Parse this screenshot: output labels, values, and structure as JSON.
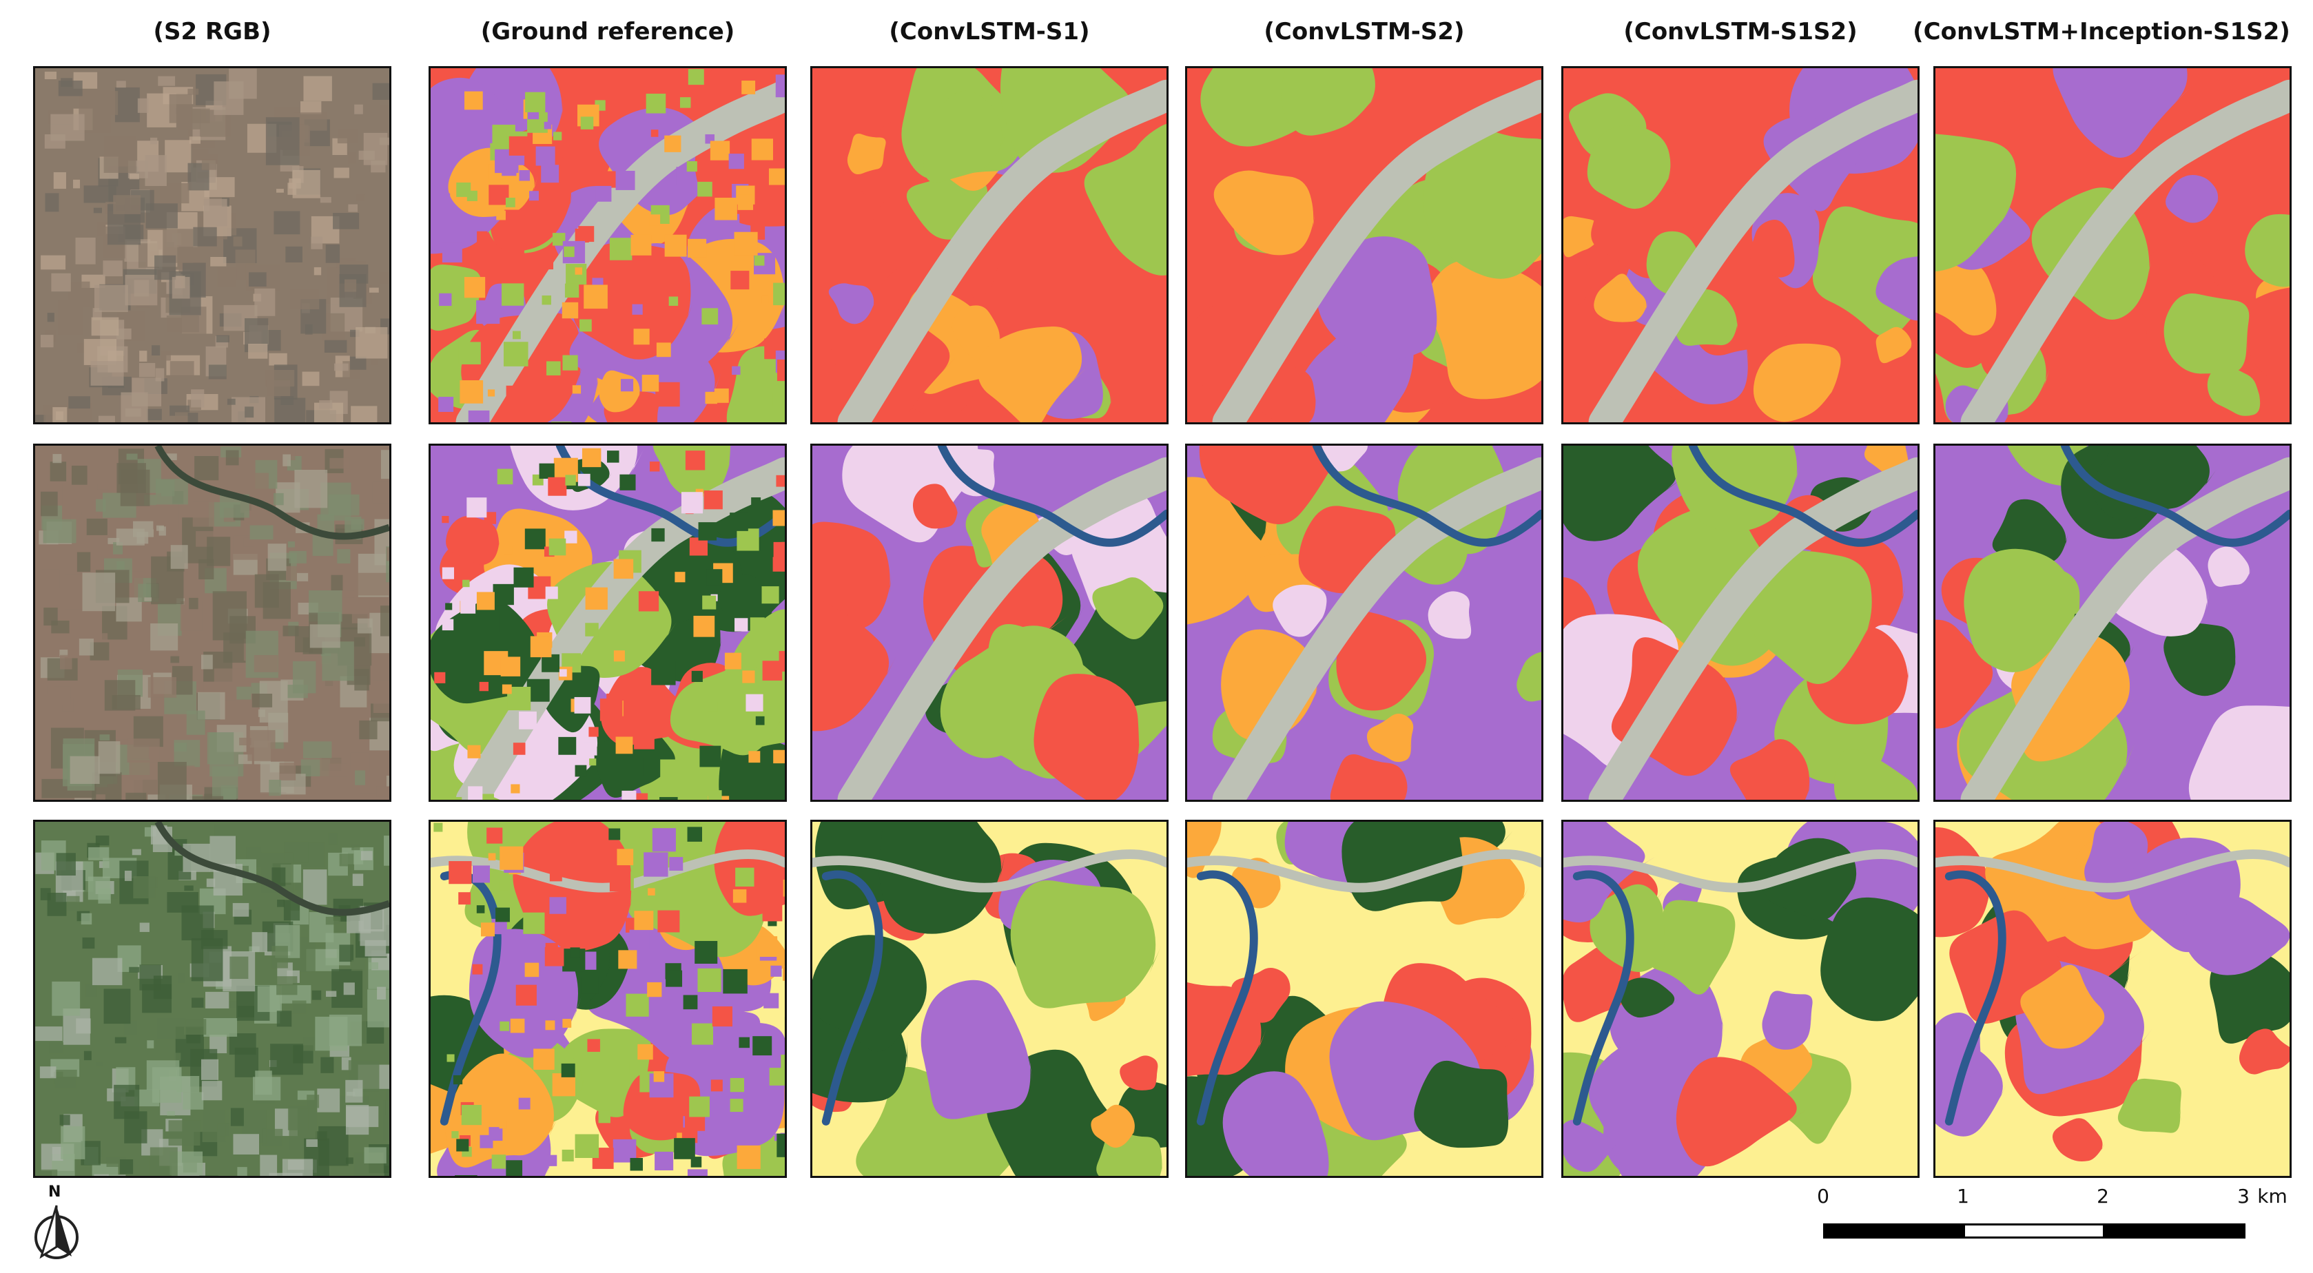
{
  "titles": [
    "(S2 RGB)",
    "(Ground reference)",
    "(ConvLSTM-S1)",
    "(ConvLSTM-S2)",
    "(ConvLSTM-S1S2)",
    "(ConvLSTM+Inception-S1S2)"
  ],
  "colors": {
    "artificial": "#f45446",
    "agriculture": "#fca93b",
    "forest_mixed": "#a76ccf",
    "grass": "#9ec64f",
    "forest_dense": "#285d2a",
    "water": "#2d5a8f",
    "bare": "#bdc1b5",
    "pasture": "#fdf091",
    "wetland": "#efd2ec"
  },
  "scale": {
    "labels": [
      "0",
      "1",
      "2",
      "3"
    ],
    "unit": "km"
  },
  "north_label": "N"
}
